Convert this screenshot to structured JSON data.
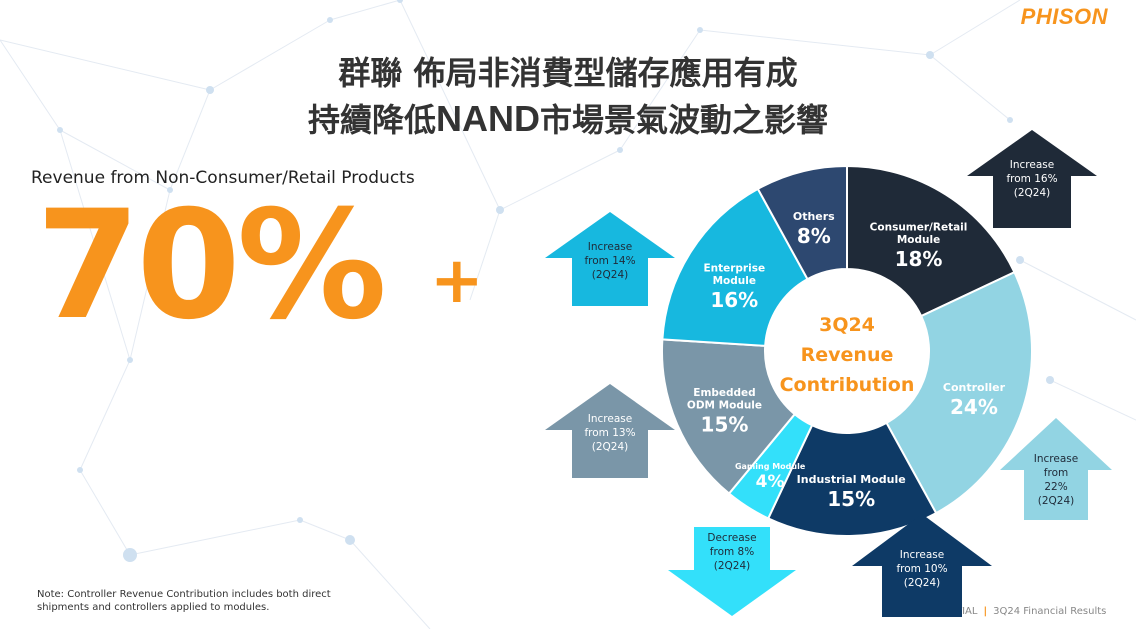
{
  "brand": "PHISON",
  "title_line1": "群聯 佈局非消費型儲存應用有成",
  "title_line2_pre": "持續降低",
  "title_line2_nand": "NAND",
  "title_line2_post": "市場景氣波動之影響",
  "subtitle": "Revenue from Non-Consumer/Retail Products",
  "big_number": "70%",
  "big_plus": "+",
  "note": "Note: Controller Revenue Contribution includes both direct shipments and controllers applied to modules.",
  "footer_left": "TIAL",
  "footer_right": "3Q24 Financial Results",
  "chart_data": {
    "type": "pie",
    "center_label": [
      "3Q24",
      "Revenue",
      "Contribution"
    ],
    "slices": [
      {
        "label": [
          "Consumer/Retail",
          "Module"
        ],
        "value": 18,
        "value_label": "18%",
        "color": "#1f2a38",
        "text_color": "#ffffff"
      },
      {
        "label": [
          "Controller"
        ],
        "value": 24,
        "value_label": "24%",
        "color": "#92d4e3",
        "text_color": "#ffffff"
      },
      {
        "label": [
          "Industrial Module"
        ],
        "value": 15,
        "value_label": "15%",
        "color": "#0e3a66",
        "text_color": "#ffffff"
      },
      {
        "label": [
          "Gaming Module"
        ],
        "value": 4,
        "value_label": "4%",
        "color": "#33e0fa",
        "text_color": "#ffffff"
      },
      {
        "label": [
          "Embedded",
          "ODM Module"
        ],
        "value": 15,
        "value_label": "15%",
        "color": "#7a96a8",
        "text_color": "#ffffff"
      },
      {
        "label": [
          "Enterprise",
          "Module"
        ],
        "value": 16,
        "value_label": "16%",
        "color": "#17b8df",
        "text_color": "#ffffff"
      },
      {
        "label": [
          "Others"
        ],
        "value": 8,
        "value_label": "8%",
        "color": "#2d4870",
        "text_color": "#ffffff"
      }
    ],
    "annotations": [
      {
        "slice": "Consumer/Retail Module",
        "direction": "up",
        "lines": [
          "Increase",
          "from 16%",
          "(2Q24)"
        ],
        "color": "#1f2a38",
        "text_color": "#ffffff"
      },
      {
        "slice": "Controller",
        "direction": "up",
        "lines": [
          "Increase",
          "from",
          "22%",
          "(2Q24)"
        ],
        "color": "#92d4e3",
        "text_color": "#1f2a38"
      },
      {
        "slice": "Industrial Module",
        "direction": "up",
        "lines": [
          "Increase",
          "from 10%",
          "(2Q24)"
        ],
        "color": "#0e3a66",
        "text_color": "#ffffff"
      },
      {
        "slice": "Gaming Module",
        "direction": "down",
        "lines": [
          "Decrease",
          "from 8%",
          "(2Q24)"
        ],
        "color": "#33e0fa",
        "text_color": "#1f2a38"
      },
      {
        "slice": "Embedded ODM Module",
        "direction": "up",
        "lines": [
          "Increase",
          "from 13%",
          "(2Q24)"
        ],
        "color": "#7a96a8",
        "text_color": "#ffffff"
      },
      {
        "slice": "Enterprise Module",
        "direction": "up",
        "lines": [
          "Increase",
          "from 14%",
          "(2Q24)"
        ],
        "color": "#17b8df",
        "text_color": "#1f2a38"
      }
    ]
  }
}
